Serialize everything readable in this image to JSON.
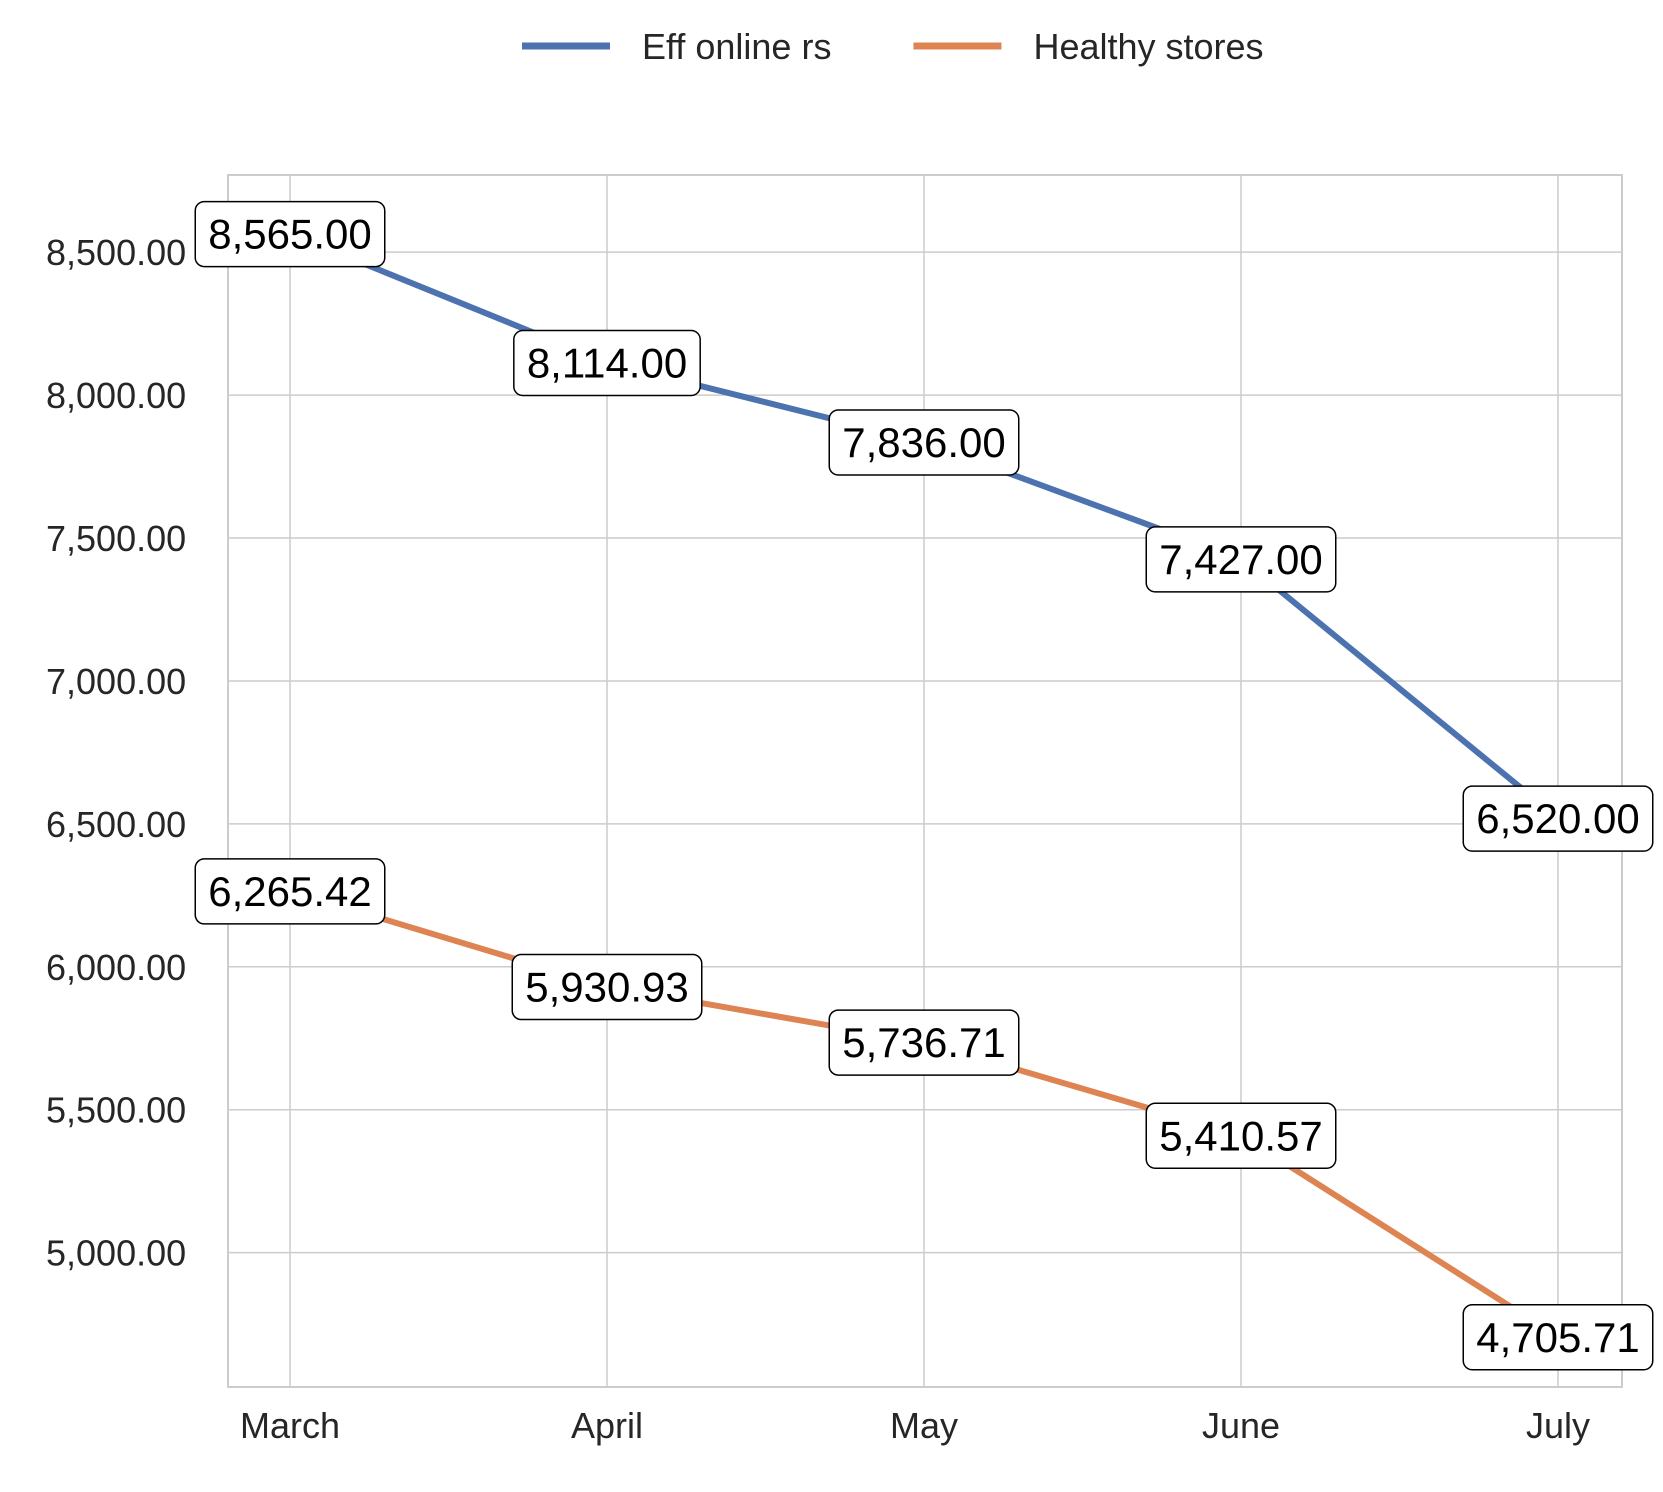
{
  "chart_data": {
    "type": "line",
    "categories": [
      "March",
      "April",
      "May",
      "June",
      "July"
    ],
    "series": [
      {
        "name": "Eff online rs",
        "color": "#4c72b0",
        "values": [
          8565.0,
          8114.0,
          7836.0,
          7427.0,
          6520.0
        ],
        "labels": [
          "8,565.00",
          "8,114.00",
          "7,836.00",
          "7,427.00",
          "6,520.00"
        ]
      },
      {
        "name": "Healthy stores",
        "color": "#dd8452",
        "values": [
          6265.42,
          5930.93,
          5736.71,
          5410.57,
          4705.71
        ],
        "labels": [
          "6,265.42",
          "5,930.93",
          "5,736.71",
          "5,410.57",
          "4,705.71"
        ]
      }
    ],
    "yticks": [
      5000,
      5500,
      6000,
      6500,
      7000,
      7500,
      8000,
      8500
    ],
    "ytick_labels": [
      "5,000.00",
      "5,500.00",
      "6,000.00",
      "6,500.00",
      "7,000.00",
      "7,500.00",
      "8,000.00",
      "8,500.00"
    ],
    "ylim": [
      4530,
      8770
    ],
    "title": "",
    "xlabel": "",
    "ylabel": "",
    "grid": true,
    "legend_position": "top-center"
  }
}
